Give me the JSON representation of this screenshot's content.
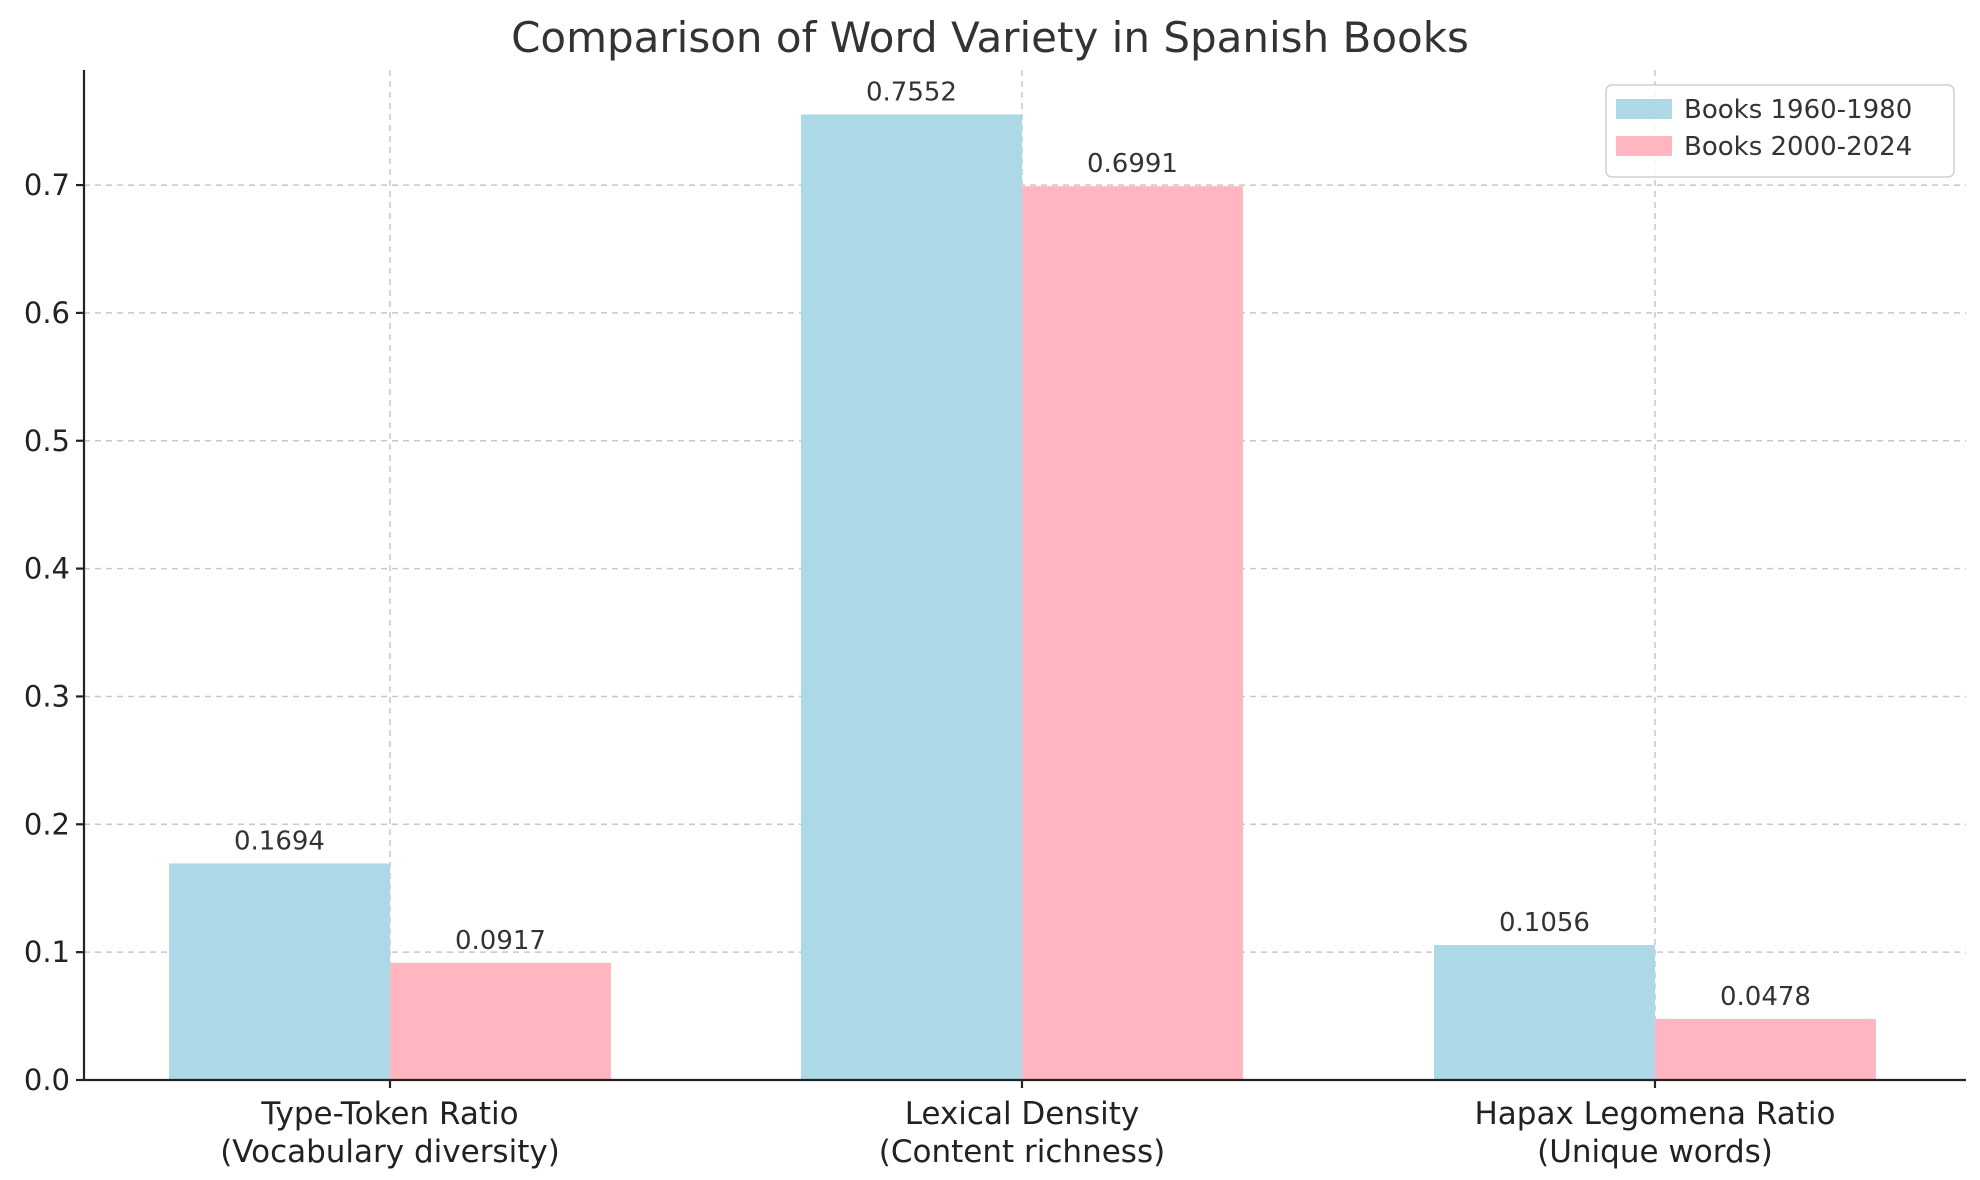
{
  "chart_data": {
    "type": "bar",
    "title": "Comparison of Word Variety in Spanish Books",
    "xlabel": "",
    "ylabel": "",
    "ylim": [
      0,
      0.79
    ],
    "yticks": [
      "0.0",
      "0.1",
      "0.2",
      "0.3",
      "0.4",
      "0.5",
      "0.6",
      "0.7"
    ],
    "grid": true,
    "legend_position": "top-right",
    "categories": [
      [
        "Type-Token Ratio",
        "(Vocabulary diversity)"
      ],
      [
        "Lexical Density",
        "(Content richness)"
      ],
      [
        "Hapax Legomena Ratio",
        "(Unique words)"
      ]
    ],
    "series": [
      {
        "name": "Books 1960-1980",
        "color": "#add8e6",
        "values": [
          0.1694,
          0.7552,
          0.1056
        ],
        "labels": [
          "0.1694",
          "0.7552",
          "0.1056"
        ]
      },
      {
        "name": "Books 2000-2024",
        "color": "#ffb6c1",
        "values": [
          0.0917,
          0.6991,
          0.0478
        ],
        "labels": [
          "0.0917",
          "0.6991",
          "0.0478"
        ]
      }
    ]
  }
}
